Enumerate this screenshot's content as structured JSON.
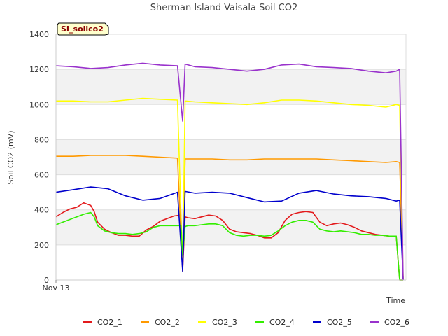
{
  "chart_data": {
    "type": "line",
    "title": "Sherman Island Vaisala Soil CO2",
    "xlabel": "Time",
    "ylabel": "Soil CO2 (mV)",
    "ylim": [
      0,
      1400
    ],
    "yticks": [
      0,
      200,
      400,
      600,
      800,
      1000,
      1200,
      1400
    ],
    "xlim": [
      0,
      1
    ],
    "xticks": [
      {
        "x": 0,
        "label": "Nov 13"
      }
    ],
    "grid": "horizontal-bands",
    "legend": "bottom",
    "badge": "SI_soilco2",
    "colors": {
      "band": "#f2f2f2",
      "grid": "#dddddd",
      "badge_bg": "#ffffcc"
    },
    "series": [
      {
        "name": "CO2_1",
        "color": "#e31a1c",
        "x": [
          0,
          0.02,
          0.04,
          0.06,
          0.08,
          0.1,
          0.11,
          0.12,
          0.14,
          0.16,
          0.18,
          0.2,
          0.22,
          0.24,
          0.26,
          0.28,
          0.3,
          0.32,
          0.34,
          0.36,
          0.365,
          0.372,
          0.38,
          0.4,
          0.42,
          0.44,
          0.46,
          0.48,
          0.5,
          0.52,
          0.54,
          0.56,
          0.58,
          0.6,
          0.62,
          0.64,
          0.66,
          0.68,
          0.7,
          0.72,
          0.74,
          0.76,
          0.78,
          0.8,
          0.82,
          0.84,
          0.86,
          0.88,
          0.9,
          0.92,
          0.94,
          0.96,
          0.98,
          0.99,
          1.0
        ],
        "y": [
          360,
          385,
          405,
          415,
          440,
          425,
          390,
          330,
          290,
          270,
          255,
          255,
          250,
          250,
          285,
          305,
          335,
          350,
          365,
          370,
          55,
          360,
          355,
          350,
          360,
          370,
          365,
          340,
          290,
          275,
          270,
          265,
          255,
          240,
          240,
          270,
          340,
          375,
          385,
          390,
          385,
          330,
          310,
          320,
          325,
          315,
          300,
          280,
          270,
          260,
          255,
          250,
          250,
          0,
          0
        ]
      },
      {
        "name": "CO2_2",
        "color": "#ff9900",
        "x": [
          0,
          0.05,
          0.1,
          0.15,
          0.2,
          0.25,
          0.3,
          0.35,
          0.365,
          0.372,
          0.4,
          0.45,
          0.5,
          0.55,
          0.6,
          0.65,
          0.7,
          0.75,
          0.8,
          0.85,
          0.9,
          0.95,
          0.98,
          0.99,
          1.0
        ],
        "y": [
          705,
          705,
          710,
          710,
          710,
          705,
          700,
          695,
          50,
          690,
          690,
          690,
          685,
          685,
          690,
          690,
          690,
          690,
          685,
          680,
          675,
          670,
          675,
          670,
          0
        ]
      },
      {
        "name": "CO2_3",
        "color": "#ffff00",
        "x": [
          0,
          0.05,
          0.1,
          0.15,
          0.2,
          0.25,
          0.3,
          0.35,
          0.365,
          0.372,
          0.4,
          0.45,
          0.5,
          0.55,
          0.6,
          0.65,
          0.7,
          0.75,
          0.8,
          0.85,
          0.9,
          0.95,
          0.98,
          0.99,
          1.0
        ],
        "y": [
          1020,
          1020,
          1015,
          1015,
          1025,
          1035,
          1030,
          1025,
          60,
          1020,
          1015,
          1010,
          1005,
          1000,
          1010,
          1025,
          1025,
          1020,
          1010,
          1000,
          995,
          985,
          1000,
          995,
          0
        ]
      },
      {
        "name": "CO2_4",
        "color": "#33ee00",
        "x": [
          0,
          0.02,
          0.04,
          0.06,
          0.08,
          0.1,
          0.11,
          0.12,
          0.14,
          0.16,
          0.18,
          0.2,
          0.22,
          0.24,
          0.26,
          0.28,
          0.3,
          0.32,
          0.34,
          0.36,
          0.365,
          0.372,
          0.38,
          0.4,
          0.42,
          0.44,
          0.46,
          0.48,
          0.5,
          0.52,
          0.54,
          0.56,
          0.58,
          0.6,
          0.62,
          0.64,
          0.66,
          0.68,
          0.7,
          0.72,
          0.74,
          0.76,
          0.78,
          0.8,
          0.82,
          0.84,
          0.86,
          0.88,
          0.9,
          0.92,
          0.94,
          0.96,
          0.98,
          0.99,
          1.0
        ],
        "y": [
          315,
          330,
          345,
          360,
          375,
          385,
          360,
          310,
          280,
          270,
          265,
          265,
          260,
          265,
          275,
          300,
          310,
          310,
          310,
          310,
          140,
          305,
          310,
          310,
          315,
          320,
          320,
          310,
          270,
          255,
          250,
          255,
          255,
          250,
          255,
          280,
          310,
          330,
          340,
          340,
          330,
          290,
          280,
          275,
          280,
          275,
          270,
          260,
          260,
          255,
          255,
          250,
          250,
          0,
          0
        ]
      },
      {
        "name": "CO2_5",
        "color": "#0000cc",
        "x": [
          0,
          0.05,
          0.1,
          0.15,
          0.2,
          0.25,
          0.3,
          0.35,
          0.365,
          0.372,
          0.4,
          0.45,
          0.5,
          0.55,
          0.6,
          0.65,
          0.7,
          0.75,
          0.8,
          0.85,
          0.9,
          0.95,
          0.98,
          0.99,
          1.0
        ],
        "y": [
          500,
          515,
          530,
          520,
          480,
          455,
          465,
          500,
          50,
          505,
          495,
          500,
          495,
          470,
          445,
          450,
          495,
          510,
          490,
          480,
          475,
          465,
          450,
          455,
          0
        ]
      },
      {
        "name": "CO2_6",
        "color": "#9932cc",
        "x": [
          0,
          0.05,
          0.1,
          0.15,
          0.2,
          0.25,
          0.3,
          0.35,
          0.365,
          0.372,
          0.4,
          0.45,
          0.5,
          0.55,
          0.6,
          0.65,
          0.7,
          0.75,
          0.8,
          0.85,
          0.9,
          0.95,
          0.98,
          0.99,
          1.0
        ],
        "y": [
          1220,
          1215,
          1205,
          1210,
          1225,
          1235,
          1225,
          1220,
          905,
          1230,
          1215,
          1210,
          1200,
          1190,
          1200,
          1225,
          1230,
          1215,
          1210,
          1205,
          1190,
          1180,
          1190,
          1200,
          0
        ]
      }
    ]
  }
}
